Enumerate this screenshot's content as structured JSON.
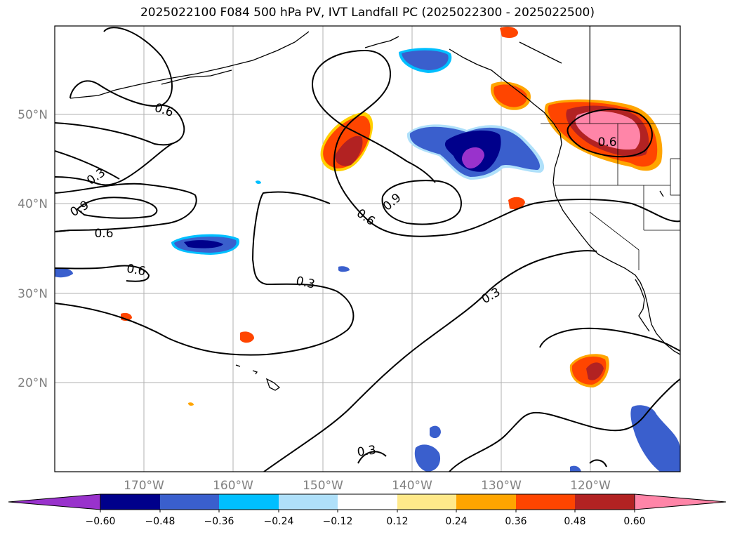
{
  "title": "2025022100 F084 500 hPa PV, IVT Landfall PC (2025022300 - 2025022500)",
  "lat_labels": [
    "50°N",
    "40°N",
    "30°N",
    "20°N"
  ],
  "lon_labels": [
    "170°W",
    "160°W",
    "150°W",
    "140°W",
    "130°W",
    "120°W"
  ],
  "contour_labels": [
    "0.6",
    "0.3",
    "0.9",
    "0.6",
    "0.6",
    "0.6",
    "0.9",
    "0.3",
    "0.3",
    "0.3",
    "0.6"
  ],
  "colorbar": {
    "ticks": [
      "−0.60",
      "−0.48",
      "−0.36",
      "−0.24",
      "−0.12",
      "0.12",
      "0.24",
      "0.36",
      "0.48",
      "0.60"
    ],
    "colors": {
      "lt_-0.60": "#9932cc",
      "-0.60_-0.48": "#00008b",
      "-0.48_-0.36": "#3a5fcd",
      "-0.36_-0.24": "#00bfff",
      "-0.24_-0.12": "#afe0fa",
      "-0.12_0.12": "#ffffff",
      "0.12_0.24": "#ffe98a",
      "0.24_0.36": "#ffa500",
      "0.36_0.48": "#ff4500",
      "0.48_0.60": "#b22222",
      "gt_0.60": "#ff85a8"
    }
  }
}
